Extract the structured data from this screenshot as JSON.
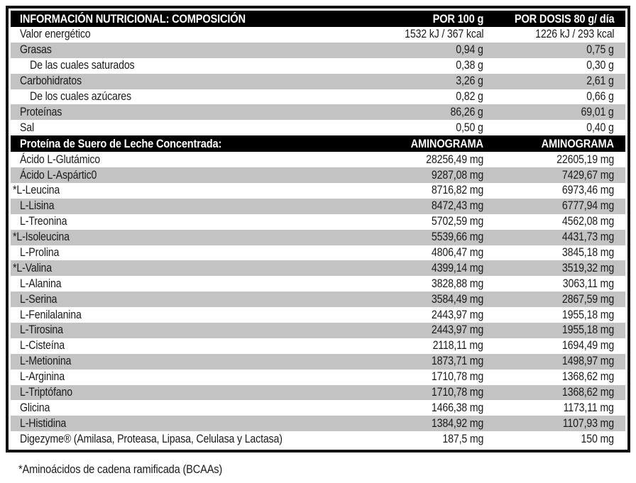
{
  "colors": {
    "bar_background": "#000000",
    "alt_row_background": "#c3c3c3",
    "border": "#121212",
    "text": "#1b1b1b"
  },
  "table": {
    "header": {
      "title": "INFORMACIÓN NUTRICIONAL: COMPOSICIÓN",
      "col_per_100": "POR 100 g",
      "col_per_dose": "POR DOSIS 80 g/ día"
    },
    "nutrition_rows": [
      {
        "label": "Valor energético",
        "per100": "1532 kJ / 367 kcal",
        "dose": "1226 kJ / 293 kcal"
      },
      {
        "label": "Grasas",
        "per100": "0,94 g",
        "dose": "0,75 g"
      },
      {
        "label": "De las cuales saturados",
        "per100": "0,38 g",
        "dose": "0,30 g",
        "sub": true
      },
      {
        "label": "Carbohidratos",
        "per100": "3,26 g",
        "dose": "2,61 g"
      },
      {
        "label": "De los cuales azúcares",
        "per100": "0,82 g",
        "dose": "0,66 g",
        "sub": true
      },
      {
        "label": "Proteínas",
        "per100": "86,26 g",
        "dose": "69,01 g"
      },
      {
        "label": "Sal",
        "per100": "0,50 g",
        "dose": "0,40 g"
      }
    ],
    "amino_header": {
      "title": "Proteína de Suero de Leche Concentrada:",
      "col_per_100": "AMINOGRAMA",
      "col_per_dose": "AMINOGRAMA"
    },
    "amino_rows": [
      {
        "label": "Ácido L-Glutámico",
        "per100": "28256,49 mg",
        "dose": "22605,19 mg"
      },
      {
        "label": "Ácido L-Aspártic0",
        "per100": "9287,08 mg",
        "dose": "7429,67 mg"
      },
      {
        "label": "*L-Leucina",
        "per100": "8716,82 mg",
        "dose": "6973,46 mg",
        "starred": true
      },
      {
        "label": "L-Lisina",
        "per100": "8472,43 mg",
        "dose": "6777,94 mg"
      },
      {
        "label": "L-Treonina",
        "per100": "5702,59 mg",
        "dose": "4562,08 mg"
      },
      {
        "label": "*L-Isoleucina",
        "per100": "5539,66 mg",
        "dose": "4431,73 mg",
        "starred": true
      },
      {
        "label": "L-Prolina",
        "per100": "4806,47 mg",
        "dose": "3845,18 mg"
      },
      {
        "label": "*L-Valina",
        "per100": "4399,14 mg",
        "dose": "3519,32 mg",
        "starred": true
      },
      {
        "label": "L-Alanina",
        "per100": "3828,88 mg",
        "dose": "3063,11 mg"
      },
      {
        "label": "L-Serina",
        "per100": "3584,49 mg",
        "dose": "2867,59 mg"
      },
      {
        "label": "L-Fenilalanina",
        "per100": "2443,97 mg",
        "dose": "1955,18 mg"
      },
      {
        "label": "L-Tirosina",
        "per100": "2443,97 mg",
        "dose": "1955,18 mg"
      },
      {
        "label": "L-Cisteína",
        "per100": "2118,11 mg",
        "dose": "1694,49 mg"
      },
      {
        "label": "L-Metionina",
        "per100": "1873,71 mg",
        "dose": "1498,97 mg"
      },
      {
        "label": "L-Arginina",
        "per100": "1710,78 mg",
        "dose": "1368,62 mg"
      },
      {
        "label": "L-Triptófano",
        "per100": "1710,78 mg",
        "dose": "1368,62 mg"
      },
      {
        "label": "Glicina",
        "per100": "1466,38 mg",
        "dose": "1173,11 mg"
      },
      {
        "label": "L-Histidina",
        "per100": "1384,92 mg",
        "dose": "1107,93 mg"
      },
      {
        "label": "Digezyme® (Amilasa, Proteasa, Lipasa, Celulasa y Lactasa)",
        "per100": "187,5 mg",
        "dose": "150 mg"
      }
    ],
    "footnote": "*Aminoácidos de cadena ramificada (BCAAs)"
  }
}
